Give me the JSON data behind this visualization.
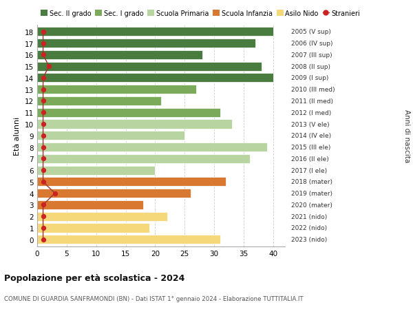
{
  "ages": [
    18,
    17,
    16,
    15,
    14,
    13,
    12,
    11,
    10,
    9,
    8,
    7,
    6,
    5,
    4,
    3,
    2,
    1,
    0
  ],
  "bar_values": [
    40,
    37,
    28,
    38,
    40,
    27,
    21,
    31,
    33,
    25,
    39,
    36,
    20,
    32,
    26,
    18,
    22,
    19,
    31
  ],
  "bar_colors": [
    "#4a7c40",
    "#4a7c40",
    "#4a7c40",
    "#4a7c40",
    "#4a7c40",
    "#7aaa5a",
    "#7aaa5a",
    "#7aaa5a",
    "#b8d4a0",
    "#b8d4a0",
    "#b8d4a0",
    "#b8d4a0",
    "#b8d4a0",
    "#d97830",
    "#d97830",
    "#d97830",
    "#f5d87a",
    "#f5d87a",
    "#f5d87a"
  ],
  "right_labels": [
    "2005 (V sup)",
    "2006 (IV sup)",
    "2007 (III sup)",
    "2008 (II sup)",
    "2009 (I sup)",
    "2010 (III med)",
    "2011 (II med)",
    "2012 (I med)",
    "2013 (V ele)",
    "2014 (IV ele)",
    "2015 (III ele)",
    "2016 (II ele)",
    "2017 (I ele)",
    "2018 (mater)",
    "2019 (mater)",
    "2020 (mater)",
    "2021 (nido)",
    "2022 (nido)",
    "2023 (nido)"
  ],
  "stranieri_values": [
    1,
    1,
    1,
    2,
    1,
    1,
    1,
    1,
    1,
    1,
    1,
    1,
    1,
    1,
    3,
    1,
    1,
    1,
    1
  ],
  "ylabel": "Età alunni",
  "right_ylabel": "Anni di nascita",
  "xlim": [
    0,
    42
  ],
  "xticks": [
    0,
    5,
    10,
    15,
    20,
    25,
    30,
    35,
    40
  ],
  "title": "Popolazione per età scolastica - 2024",
  "subtitle": "COMUNE DI GUARDIA SANFRAMONDI (BN) - Dati ISTAT 1° gennaio 2024 - Elaborazione TUTTITALIA.IT",
  "legend_items": [
    {
      "label": "Sec. II grado",
      "color": "#4a7c40"
    },
    {
      "label": "Sec. I grado",
      "color": "#7aaa5a"
    },
    {
      "label": "Scuola Primaria",
      "color": "#b8d4a0"
    },
    {
      "label": "Scuola Infanzia",
      "color": "#d97830"
    },
    {
      "label": "Asilo Nido",
      "color": "#f5d87a"
    },
    {
      "label": "Stranieri",
      "color": "#cc2222"
    }
  ],
  "bg_color": "#ffffff",
  "grid_color": "#cccccc",
  "stranieri_line_color": "#993333",
  "stranieri_dot_color": "#cc2222"
}
